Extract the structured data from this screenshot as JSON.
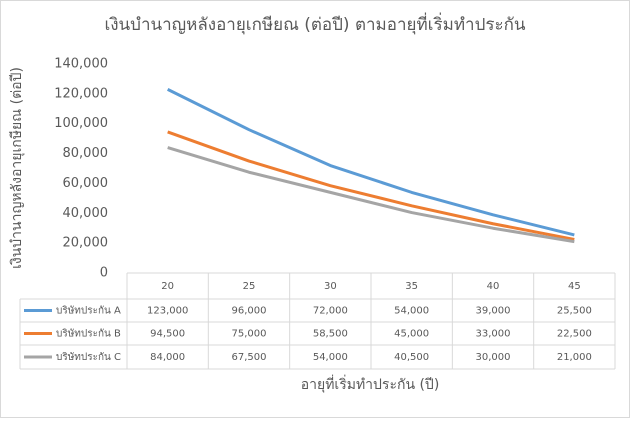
{
  "chart_data": {
    "type": "line",
    "title": "เงินบำนาญหลังอายุเกษียณ (ต่อปี) ตามอายุที่เริ่มทำประกัน",
    "x_label": "อายุที่เริ่มทำประกัน (ปี)",
    "y_label": "เงินบำนาญหลังอายุเกษียณ (ต่อปี)",
    "categories": [
      "20",
      "25",
      "30",
      "35",
      "40",
      "45"
    ],
    "series": [
      {
        "name": "บริษัทประกัน A",
        "color": "#5b9bd5",
        "values": [
          123000,
          96000,
          72000,
          54000,
          39000,
          25500
        ],
        "value_labels": [
          "123,000",
          "96,000",
          "72,000",
          "54,000",
          "39,000",
          "25,500"
        ]
      },
      {
        "name": "บริษัทประกัน B",
        "color": "#ed7d31",
        "values": [
          94500,
          75000,
          58500,
          45000,
          33000,
          22500
        ],
        "value_labels": [
          "94,500",
          "75,000",
          "58,500",
          "45,000",
          "33,000",
          "22,500"
        ]
      },
      {
        "name": "บริษัทประกัน C",
        "color": "#a5a5a5",
        "values": [
          84000,
          67500,
          54000,
          40500,
          30000,
          21000
        ],
        "value_labels": [
          "84,000",
          "67,500",
          "54,000",
          "40,500",
          "30,000",
          "21,000"
        ]
      }
    ],
    "ylim": [
      0,
      140000
    ],
    "yticks": [
      0,
      {
        "value": 20000,
        "label": "20,000"
      },
      {
        "value": 40000,
        "label": "40,000"
      },
      {
        "value": 60000,
        "label": "60,000"
      },
      {
        "value": 80000,
        "label": "80,000"
      },
      {
        "value": 100000,
        "label": "100,000"
      },
      {
        "value": 120000,
        "label": "120,000"
      },
      {
        "value": 140000,
        "label": "140,000"
      }
    ],
    "grid": false
  }
}
